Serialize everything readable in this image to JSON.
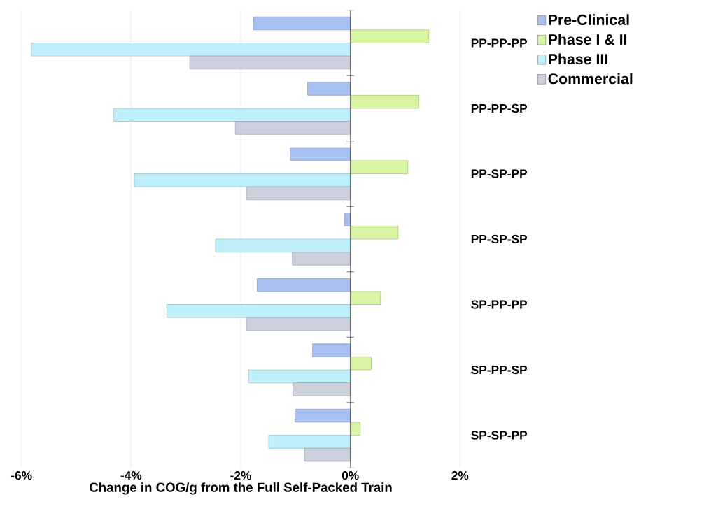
{
  "chart_data": {
    "type": "bar",
    "orientation": "horizontal",
    "xlabel": "Change in COG/g from the Full Self-Packed Train",
    "categories": [
      "PP-PP-PP",
      "PP-PP-SP",
      "PP-SP-PP",
      "PP-SP-SP",
      "SP-PP-PP",
      "SP-PP-SP",
      "SP-SP-PP"
    ],
    "series": [
      {
        "name": "Pre-Clinical",
        "color": "#a9c1f0",
        "values": [
          -1.77,
          -0.78,
          -1.1,
          -0.11,
          -1.7,
          -0.69,
          -1.01
        ]
      },
      {
        "name": "Phase I & II",
        "color": "#d8f5a4",
        "values": [
          1.43,
          1.25,
          1.05,
          0.87,
          0.55,
          0.38,
          0.18
        ]
      },
      {
        "name": "Phase III",
        "color": "#bdf0fa",
        "values": [
          -5.82,
          -4.32,
          -3.94,
          -2.46,
          -3.35,
          -1.86,
          -1.49
        ]
      },
      {
        "name": "Commercial",
        "color": "#cbd0dc",
        "values": [
          -2.93,
          -2.1,
          -1.89,
          -1.06,
          -1.89,
          -1.05,
          -0.84
        ]
      }
    ],
    "xlim": [
      -6,
      2
    ],
    "xticks": [
      {
        "value": -6,
        "label": "-6%"
      },
      {
        "value": -4,
        "label": "-4%"
      },
      {
        "value": -2,
        "label": "-2%"
      },
      {
        "value": 0,
        "label": "0%"
      },
      {
        "value": 2,
        "label": "2%"
      }
    ],
    "grid": "x",
    "legend": "top right"
  }
}
